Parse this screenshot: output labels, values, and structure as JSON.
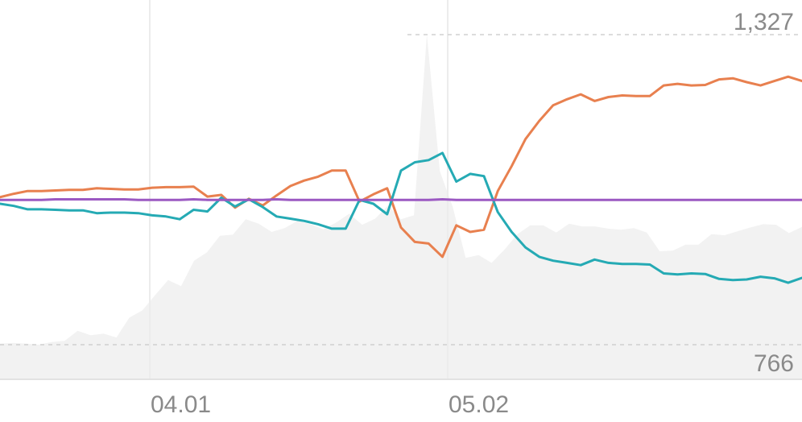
{
  "chart_data": {
    "type": "line",
    "x_ticks": [
      "04.01",
      "05.02"
    ],
    "max_label": "1,327",
    "min_label": "766",
    "max_value": 1327,
    "min_value": 766,
    "area": {
      "name": "",
      "color": "#f2f2f2",
      "values": [
        768,
        769,
        768,
        766,
        771,
        773,
        791,
        783,
        786,
        779,
        815,
        828,
        856,
        883,
        872,
        918,
        933,
        963,
        965,
        993,
        985,
        970,
        977,
        990,
        984,
        975,
        987,
        1003,
        983,
        994,
        1018,
        993,
        1000,
        1327,
        1080,
        1015,
        923,
        928,
        914,
        938,
        966,
        982,
        982,
        969,
        985,
        980,
        980,
        976,
        974,
        977,
        969,
        935,
        936,
        947,
        947,
        966,
        964,
        971,
        978,
        984,
        983,
        968,
        979
      ]
    },
    "series": [
      {
        "name": "",
        "color": "#e8804f",
        "values": [
          1033,
          1039,
          1044,
          1044,
          1045,
          1046,
          1046,
          1049,
          1048,
          1047,
          1047,
          1050,
          1051,
          1051,
          1052,
          1034,
          1037,
          1014,
          1030,
          1018,
          1036,
          1053,
          1063,
          1070,
          1081,
          1081,
          1025,
          1038,
          1049,
          978,
          952,
          949,
          925,
          982,
          970,
          974,
          1044,
          1089,
          1138,
          1171,
          1199,
          1210,
          1219,
          1207,
          1214,
          1217,
          1216,
          1216,
          1235,
          1238,
          1235,
          1236,
          1246,
          1248,
          1241,
          1235,
          1243,
          1251,
          1243
        ]
      },
      {
        "name": "",
        "color": "#25aab4",
        "values": [
          1021,
          1017,
          1011,
          1011,
          1010,
          1009,
          1009,
          1004,
          1005,
          1005,
          1004,
          1000,
          998,
          993,
          1010,
          1007,
          1032,
          1016,
          1029,
          1015,
          998,
          994,
          990,
          984,
          976,
          976,
          1028,
          1021,
          1002,
          1081,
          1096,
          1100,
          1113,
          1061,
          1075,
          1071,
          1006,
          970,
          942,
          925,
          918,
          914,
          910,
          920,
          914,
          912,
          912,
          911,
          895,
          893,
          895,
          894,
          885,
          883,
          884,
          889,
          886,
          878,
          887
        ]
      },
      {
        "name": "",
        "color": "#9b59c2",
        "values": [
          1028,
          1028,
          1028,
          1028,
          1029,
          1029,
          1029,
          1029,
          1029,
          1029,
          1028,
          1028,
          1028,
          1028,
          1029,
          1028,
          1028,
          1028,
          1028,
          1028,
          1029,
          1028,
          1028,
          1028,
          1028,
          1028,
          1028,
          1028,
          1028,
          1028,
          1028,
          1028,
          1029,
          1028,
          1028,
          1028,
          1028,
          1028,
          1028,
          1028,
          1028,
          1028,
          1028,
          1028,
          1028,
          1028,
          1028,
          1028,
          1028,
          1028,
          1028,
          1028,
          1028,
          1028,
          1028,
          1028,
          1028,
          1028,
          1028
        ]
      }
    ],
    "grid": "vertical-at-ticks",
    "legend": "none"
  }
}
